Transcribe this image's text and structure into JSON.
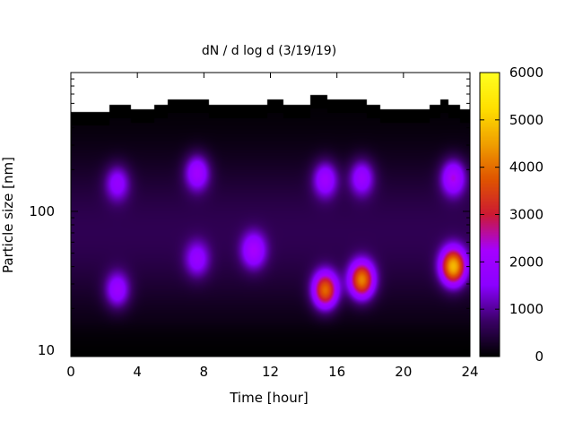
{
  "chart_data": {
    "type": "heatmap",
    "title": "dN / d log d (3/19/19)",
    "xlabel": "Time [hour]",
    "ylabel": "Particle size [nm]",
    "x_ticks": [
      "0",
      "4",
      "8",
      "12",
      "16",
      "20",
      "24"
    ],
    "x_tick_values": [
      0,
      4,
      8,
      12,
      16,
      20,
      24
    ],
    "xlim": [
      0,
      24
    ],
    "y_scale": "log",
    "y_ticks": [
      "10",
      "100"
    ],
    "y_tick_values": [
      10,
      100
    ],
    "ylim": [
      9,
      1000
    ],
    "colorbar": {
      "range": [
        0,
        6000
      ],
      "ticks": [
        "0",
        "1000",
        "2000",
        "3000",
        "4000",
        "5000",
        "6000"
      ],
      "tick_values": [
        0,
        1000,
        2000,
        3000,
        4000,
        5000,
        6000
      ],
      "colormap": [
        "#000000",
        "#3a0066",
        "#8b00ff",
        "#a600ff",
        "#cc1a33",
        "#e05500",
        "#f0a000",
        "#ffe000",
        "#ffff20"
      ]
    },
    "background_level": 600,
    "no_data_color": "#000000",
    "features": [
      {
        "time": 2.8,
        "size_nm": 27,
        "value": 1600
      },
      {
        "time": 2.8,
        "size_nm": 160,
        "value": 1400
      },
      {
        "time": 7.6,
        "size_nm": 190,
        "value": 1800
      },
      {
        "time": 7.6,
        "size_nm": 45,
        "value": 1300
      },
      {
        "time": 11,
        "size_nm": 52,
        "value": 1700
      },
      {
        "time": 15.3,
        "size_nm": 27,
        "value": 3600
      },
      {
        "time": 15.3,
        "size_nm": 170,
        "value": 1700
      },
      {
        "time": 17.5,
        "size_nm": 32,
        "value": 3800
      },
      {
        "time": 17.5,
        "size_nm": 175,
        "value": 1600
      },
      {
        "time": 23,
        "size_nm": 40,
        "value": 4300
      },
      {
        "time": 23,
        "size_nm": 175,
        "value": 2000
      }
    ],
    "upper_size_limit_nm": [
      {
        "time": 0,
        "size_nm": 520
      },
      {
        "time": 2.2,
        "size_nm": 520
      },
      {
        "time": 2.3,
        "size_nm": 590
      },
      {
        "time": 3.5,
        "size_nm": 590
      },
      {
        "time": 3.6,
        "size_nm": 540
      },
      {
        "time": 4.9,
        "size_nm": 540
      },
      {
        "time": 5.0,
        "size_nm": 590
      },
      {
        "time": 5.7,
        "size_nm": 590
      },
      {
        "time": 5.8,
        "size_nm": 640
      },
      {
        "time": 8.2,
        "size_nm": 640
      },
      {
        "time": 8.3,
        "size_nm": 590
      },
      {
        "time": 11.7,
        "size_nm": 590
      },
      {
        "time": 11.8,
        "size_nm": 640
      },
      {
        "time": 12.7,
        "size_nm": 640
      },
      {
        "time": 12.8,
        "size_nm": 590
      },
      {
        "time": 14.3,
        "size_nm": 590
      },
      {
        "time": 14.4,
        "size_nm": 690
      },
      {
        "time": 15.3,
        "size_nm": 690
      },
      {
        "time": 15.4,
        "size_nm": 640
      },
      {
        "time": 17.7,
        "size_nm": 640
      },
      {
        "time": 17.8,
        "size_nm": 590
      },
      {
        "time": 18.5,
        "size_nm": 590
      },
      {
        "time": 18.6,
        "size_nm": 540
      },
      {
        "time": 21.5,
        "size_nm": 540
      },
      {
        "time": 21.6,
        "size_nm": 590
      },
      {
        "time": 22.1,
        "size_nm": 590
      },
      {
        "time": 22.2,
        "size_nm": 640
      },
      {
        "time": 22.6,
        "size_nm": 640
      },
      {
        "time": 22.7,
        "size_nm": 590
      },
      {
        "time": 23.3,
        "size_nm": 590
      },
      {
        "time": 23.4,
        "size_nm": 540
      },
      {
        "time": 24,
        "size_nm": 540
      }
    ]
  }
}
